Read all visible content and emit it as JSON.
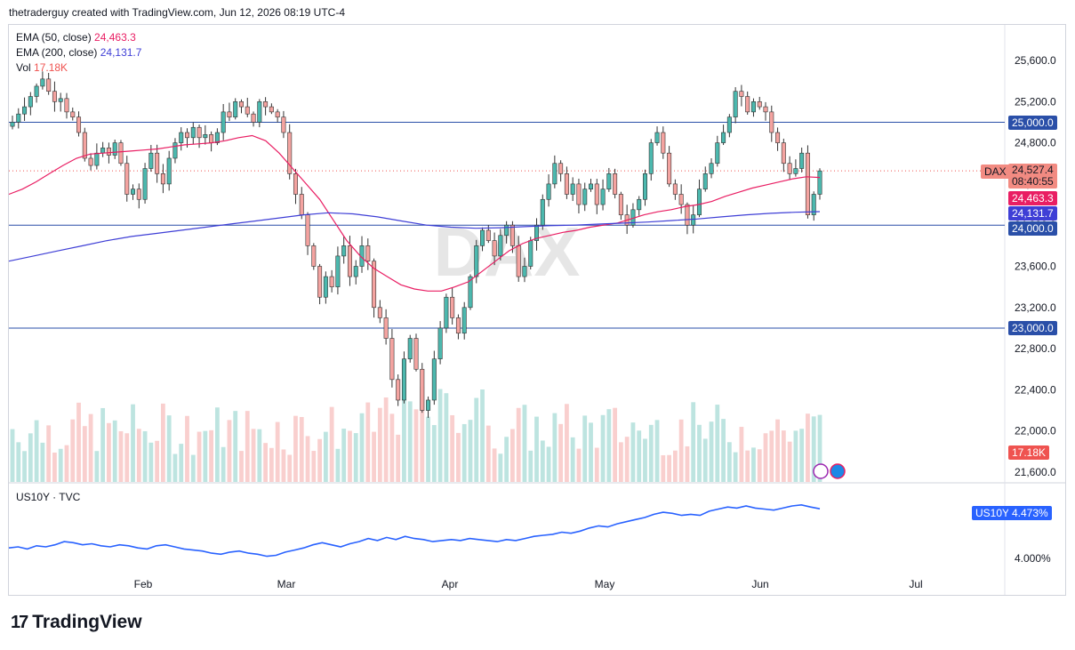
{
  "header": {
    "credit": "thetraderguy created with TradingView.com, Jun 12, 2026 08:19 UTC-4"
  },
  "legend": {
    "ema50_name": "EMA (50, close)",
    "ema50_value": "24,463.3",
    "ema200_name": "EMA (200, close)",
    "ema200_value": "24,131.7",
    "vol_name": "Vol",
    "vol_value": "17.18K"
  },
  "watermark": "DAX",
  "price_tags": {
    "symbol": "DAX",
    "last": "24,527.4",
    "countdown": "08:40:55",
    "ema50": "24,463.3",
    "ema200": "24,131.7",
    "vol": "17.18K",
    "level_25000": "25,000.0",
    "level_24000": "24,000.0",
    "level_23000": "23,000.0",
    "us10y_symbol": "US10Y",
    "us10y_value": "4.473%"
  },
  "colors": {
    "up": "#26a69a",
    "down": "#ef5350",
    "ema50": "#e91e63",
    "ema200": "#3f3fd6",
    "level": "#2a4fa8",
    "us10y": "#2962ff"
  },
  "pane2": {
    "title": "US10Y · TVC",
    "tick": "4.000%"
  },
  "footer": {
    "brand": "TradingView"
  },
  "chart_data": [
    {
      "type": "line",
      "title": "DAX",
      "x": [
        "Feb",
        "Mar",
        "Apr",
        "May",
        "Jun",
        "Jul"
      ],
      "y_ticks": [
        "25,600.0",
        "25,200.0",
        "24,800.0",
        "24,400.0",
        "24,000.0",
        "23,600.0",
        "23,200.0",
        "22,800.0",
        "22,400.0",
        "22,000.0",
        "21,600.0"
      ],
      "ylim": [
        21500,
        25850
      ],
      "horizontal_levels": [
        25000,
        24000,
        23000
      ],
      "last_price": 24527.4,
      "ohlc_close_path": [
        25000,
        25080,
        25150,
        25250,
        25350,
        25420,
        25300,
        25200,
        25230,
        25100,
        25050,
        24900,
        24650,
        24580,
        24700,
        24750,
        24680,
        24800,
        24600,
        24300,
        24350,
        24250,
        24550,
        24700,
        24500,
        24400,
        24650,
        24800,
        24900,
        24850,
        24950,
        24850,
        24880,
        24800,
        24900,
        25100,
        25050,
        25200,
        25150,
        25080,
        25000,
        25200,
        25150,
        25100,
        25050,
        24900,
        24500,
        24300,
        24100,
        23800,
        23600,
        23300,
        23500,
        23400,
        23700,
        23800,
        23500,
        23600,
        23800,
        23650,
        23200,
        23100,
        22900,
        22500,
        22300,
        22700,
        22900,
        22600,
        22200,
        22300,
        22700,
        23000,
        23300,
        23100,
        22950,
        23200,
        23500,
        23800,
        23950,
        23850,
        23700,
        23900,
        24000,
        23800,
        23500,
        23600,
        23850,
        24000,
        24250,
        24400,
        24600,
        24500,
        24300,
        24400,
        24200,
        24350,
        24400,
        24200,
        24350,
        24500,
        24300,
        24100,
        24000,
        24150,
        24250,
        24500,
        24800,
        24900,
        24700,
        24400,
        24300,
        24200,
        24000,
        24100,
        24350,
        24500,
        24600,
        24800,
        24900,
        25050,
        25300,
        25250,
        25100,
        25200,
        25150,
        25100,
        24900,
        24800,
        24600,
        24500,
        24550,
        24700,
        24100,
        24300,
        24527
      ],
      "ema50_path": [
        24300,
        24350,
        24420,
        24500,
        24580,
        24650,
        24690,
        24700,
        24710,
        24720,
        24730,
        24740,
        24760,
        24780,
        24790,
        24800,
        24820,
        24850,
        24870,
        24820,
        24700,
        24550,
        24400,
        24250,
        24050,
        23850,
        23700,
        23580,
        23500,
        23420,
        23380,
        23360,
        23360,
        23400,
        23450,
        23550,
        23650,
        23750,
        23820,
        23870,
        23900,
        23930,
        23950,
        23980,
        24000,
        24020,
        24060,
        24100,
        24130,
        24150,
        24180,
        24200,
        24230,
        24280,
        24320,
        24360,
        24390,
        24420,
        24450,
        24470,
        24463
      ],
      "ema200_path": [
        23650,
        23700,
        23750,
        23800,
        23850,
        23890,
        23920,
        23950,
        23980,
        24010,
        24040,
        24070,
        24100,
        24120,
        24110,
        24080,
        24040,
        24000,
        23980,
        23970,
        23975,
        23985,
        23995,
        24000,
        24010,
        24020,
        24030,
        24045,
        24060,
        24080,
        24100,
        24115,
        24125,
        24131
      ],
      "series": [
        {
          "name": "EMA (50, close)",
          "last": 24463.3
        },
        {
          "name": "EMA (200, close)",
          "last": 24131.7
        },
        {
          "name": "Vol",
          "last": "17.18K"
        }
      ]
    },
    {
      "type": "line",
      "title": "US10Y · TVC",
      "values": [
        4.1,
        4.11,
        4.09,
        4.12,
        4.11,
        4.13,
        4.16,
        4.15,
        4.13,
        4.14,
        4.12,
        4.11,
        4.13,
        4.12,
        4.1,
        4.09,
        4.12,
        4.13,
        4.11,
        4.09,
        4.08,
        4.07,
        4.05,
        4.04,
        4.06,
        4.07,
        4.05,
        4.04,
        4.02,
        4.03,
        4.06,
        4.08,
        4.1,
        4.13,
        4.15,
        4.13,
        4.11,
        4.14,
        4.16,
        4.19,
        4.17,
        4.2,
        4.18,
        4.21,
        4.19,
        4.18,
        4.16,
        4.17,
        4.18,
        4.17,
        4.19,
        4.18,
        4.17,
        4.16,
        4.18,
        4.17,
        4.19,
        4.21,
        4.22,
        4.23,
        4.25,
        4.24,
        4.26,
        4.29,
        4.31,
        4.3,
        4.33,
        4.35,
        4.37,
        4.39,
        4.42,
        4.44,
        4.43,
        4.41,
        4.42,
        4.41,
        4.45,
        4.47,
        4.49,
        4.48,
        4.5,
        4.48,
        4.47,
        4.46,
        4.48,
        4.5,
        4.51,
        4.49,
        4.473
      ],
      "last": 4.473
    }
  ]
}
